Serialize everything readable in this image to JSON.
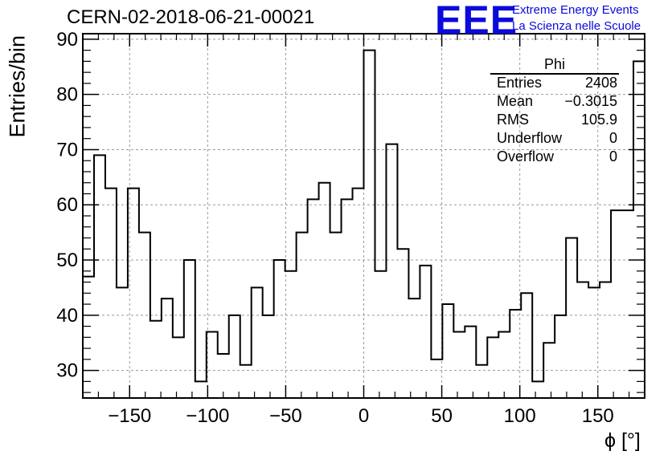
{
  "header": {
    "run_title": "CERN-02-2018-06-21-00021",
    "logo_text": "EEE",
    "logo_line1": "Extreme Energy Events",
    "logo_line2": "La Scienza nelle Scuole"
  },
  "stats": {
    "title": "Phi",
    "rows": [
      {
        "label": "Entries",
        "value": "2408"
      },
      {
        "label": "Mean",
        "value": "−0.3015"
      },
      {
        "label": "RMS",
        "value": "105.9"
      },
      {
        "label": "Underflow",
        "value": "0"
      },
      {
        "label": "Overflow",
        "value": "0"
      }
    ]
  },
  "colors": {
    "logo": "#0a0adc",
    "line": "#000000",
    "grid": "#999999"
  },
  "chart_data": {
    "type": "histogram",
    "title": "CERN-02-2018-06-21-00021",
    "xlabel": "ϕ [°]",
    "ylabel": "Entries/bin",
    "xlim": [
      -180,
      180
    ],
    "ylim": [
      25,
      91
    ],
    "bin_width": 7.2,
    "xticks": [
      -150,
      -100,
      -50,
      0,
      50,
      100,
      150
    ],
    "xtick_labels": [
      "−150",
      "−100",
      "−50",
      "0",
      "50",
      "100",
      "150"
    ],
    "yticks": [
      30,
      40,
      50,
      60,
      70,
      80,
      90
    ],
    "ytick_labels": [
      "30",
      "40",
      "50",
      "60",
      "70",
      "80",
      "90"
    ],
    "grid": true,
    "values": [
      47,
      69,
      63,
      45,
      63,
      55,
      39,
      43,
      36,
      50,
      28,
      37,
      33,
      40,
      31,
      45,
      40,
      50,
      48,
      55,
      61,
      64,
      55,
      61,
      63,
      88,
      48,
      71,
      52,
      43,
      49,
      32,
      42,
      37,
      38,
      31,
      36,
      37,
      41,
      44,
      28,
      35,
      40,
      54,
      46,
      45,
      46,
      59,
      59,
      86
    ]
  }
}
